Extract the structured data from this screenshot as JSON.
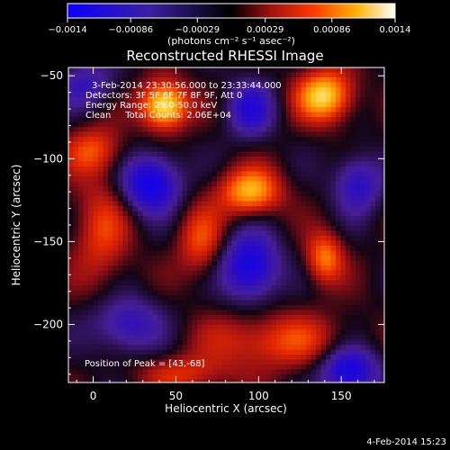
{
  "colorbar": {
    "unit_label": "(photons cm⁻² s⁻¹ asec⁻²)",
    "ticks": [
      "−0.0014",
      "−0.00086",
      "−0.00029",
      "0.00029",
      "0.00086",
      "0.0014"
    ],
    "tick_values": [
      -0.0014,
      -0.00086,
      -0.00029,
      0.00029,
      0.00086,
      0.0014
    ],
    "range": [
      -0.0014,
      0.0014
    ]
  },
  "chart_data": {
    "type": "heatmap",
    "title": "Reconstructed RHESSI Image",
    "xlabel": "Heliocentric X (arcsec)",
    "ylabel": "Heliocentric Y (arcsec)",
    "xlim": [
      -15,
      176
    ],
    "ylim": [
      -235,
      -45
    ],
    "x_ticks": [
      0,
      50,
      100,
      150
    ],
    "x_tick_labels": [
      "0",
      "50",
      "100",
      "150"
    ],
    "y_ticks": [
      -50,
      -100,
      -150,
      -200
    ],
    "y_tick_labels": [
      "−50",
      "−100",
      "−150",
      "−200"
    ],
    "colormap": "blue-black-red-yellow-white",
    "peak": [
      43,
      -68
    ],
    "features": {
      "positive_sources": [
        {
          "x": 43,
          "y": -68,
          "amp": 1.0,
          "sx": 10,
          "sy": 10
        },
        {
          "x": 140,
          "y": -62,
          "amp": 0.85,
          "sx": 12,
          "sy": 11
        },
        {
          "x": 95,
          "y": -120,
          "amp": 0.75,
          "sx": 13,
          "sy": 10
        },
        {
          "x": 140,
          "y": -160,
          "amp": 0.6,
          "sx": 8,
          "sy": 11
        },
        {
          "x": 110,
          "y": -210,
          "amp": 0.45,
          "sx": 30,
          "sy": 12
        },
        {
          "x": 0,
          "y": -95,
          "amp": 0.45,
          "sx": 12,
          "sy": 10
        },
        {
          "x": 5,
          "y": -145,
          "amp": 0.4,
          "sx": 12,
          "sy": 25
        },
        {
          "x": 55,
          "y": -230,
          "amp": 0.35,
          "sx": 20,
          "sy": 8
        },
        {
          "x": 65,
          "y": -150,
          "amp": 0.45,
          "sx": 10,
          "sy": 15
        }
      ],
      "negative_sources": [
        {
          "x": 35,
          "y": -115,
          "amp": 0.9,
          "sx": 12,
          "sy": 12
        },
        {
          "x": 95,
          "y": -165,
          "amp": 0.85,
          "sx": 12,
          "sy": 14
        },
        {
          "x": 95,
          "y": -70,
          "amp": 0.6,
          "sx": 10,
          "sy": 12
        },
        {
          "x": 155,
          "y": -228,
          "amp": 0.85,
          "sx": 12,
          "sy": 10
        },
        {
          "x": 160,
          "y": -115,
          "amp": 0.6,
          "sx": 10,
          "sy": 12
        },
        {
          "x": 20,
          "y": -200,
          "amp": 0.55,
          "sx": 15,
          "sy": 12
        },
        {
          "x": -5,
          "y": -55,
          "amp": 0.45,
          "sx": 12,
          "sy": 10
        }
      ]
    }
  },
  "annotations": {
    "time_range": "3-Feb-2014 23:30:56.000 to 23:33:44.000",
    "detectors": "Detectors: 3F 5F 6F 7F 8F 9F, Att 0",
    "energy": "Energy Range: 25.0-50.0 keV",
    "clean": "Clean     Total Counts: 2.06E+04",
    "peak_text": "Position of Peak = [43,-68]"
  },
  "footer": {
    "timestamp": "4-Feb-2014 15:23"
  }
}
